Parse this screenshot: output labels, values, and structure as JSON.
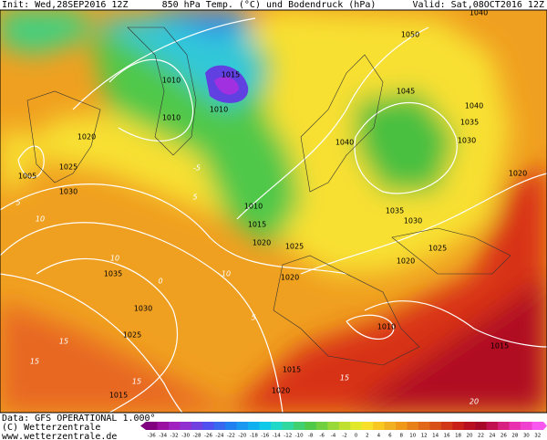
{
  "header": {
    "init": "Init: Wed,28SEP2016 12Z",
    "title": "850 hPa Temp. (°C) und Bodendruck (hPa)",
    "valid": "Valid: Sat,08OCT2016 12Z"
  },
  "footer": {
    "source": "Data: GFS OPERATIONAL 1.000°",
    "copyright": "(C) Wetterzentrale",
    "url": "www.wetterzentrale.de"
  },
  "isobar_labels": [
    "1040",
    "1050",
    "1010",
    "1015",
    "1010",
    "1010",
    "1020",
    "1025",
    "1005",
    "1030",
    "1045",
    "1040",
    "1035",
    "1030",
    "1040",
    "1020",
    "1010",
    "1015",
    "1020",
    "1025",
    "1035",
    "1030",
    "1025",
    "1020",
    "1020",
    "1035",
    "1030",
    "1025",
    "1010",
    "1015",
    "1015",
    "1020",
    "1015"
  ],
  "isotherm_labels": [
    "10",
    "5",
    "10",
    "15",
    "15",
    "15",
    "-5",
    "5",
    "10",
    "0",
    "5",
    "15",
    "20"
  ],
  "colorbar": {
    "ticks": [
      -36,
      -34,
      -32,
      -30,
      -28,
      -26,
      -24,
      -22,
      -20,
      -18,
      -16,
      -14,
      -12,
      -10,
      -8,
      -6,
      -4,
      -2,
      0,
      2,
      4,
      6,
      8,
      10,
      12,
      14,
      16,
      18,
      20,
      22,
      24,
      26,
      28,
      30,
      32
    ]
  }
}
